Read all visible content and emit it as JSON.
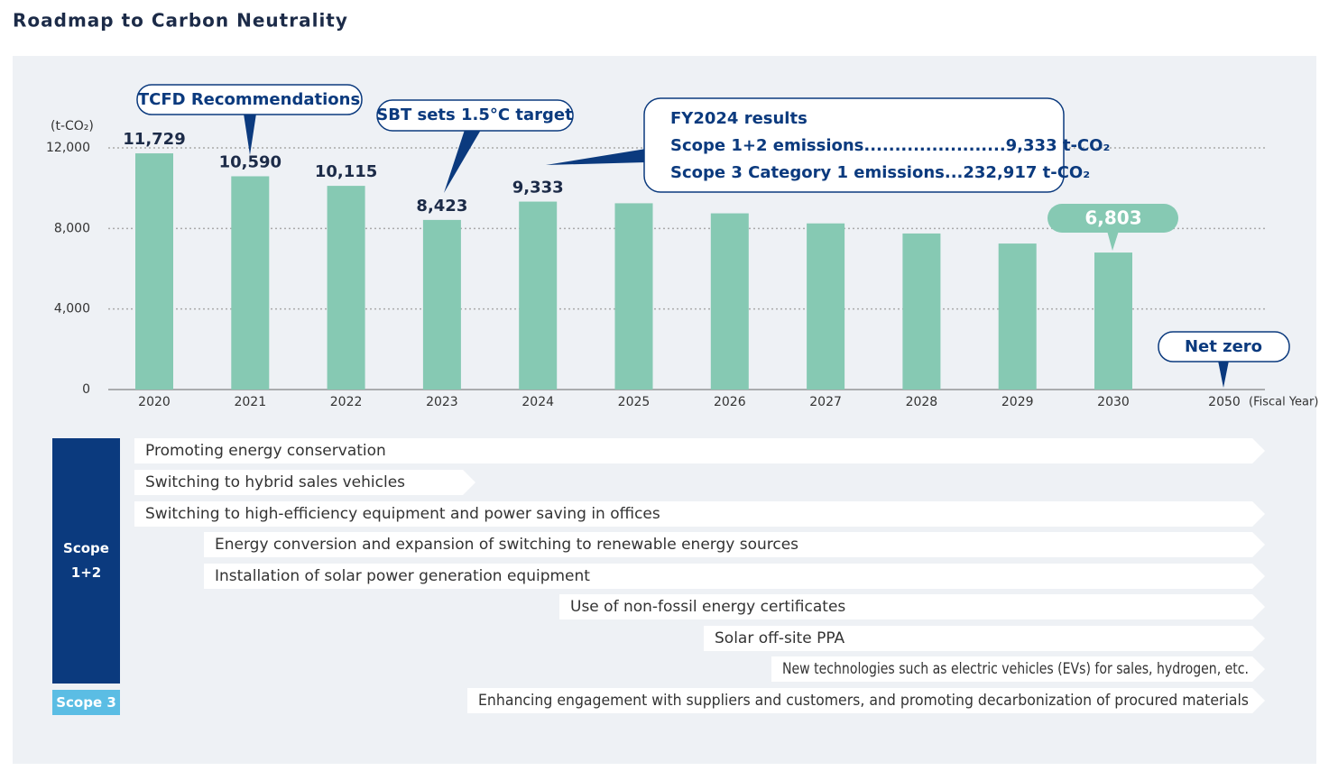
{
  "chart_data": {
    "type": "bar",
    "title": "Roadmap to Carbon Neutrality",
    "y_axis_label": "(t-CO₂)",
    "x_axis_label": "(Fiscal Year)",
    "categories": [
      "2020",
      "2021",
      "2022",
      "2023",
      "2024",
      "2025",
      "2026",
      "2027",
      "2028",
      "2029",
      "2030",
      "2050"
    ],
    "values": [
      11729,
      10590,
      10115,
      8423,
      9333,
      9250,
      8750,
      8250,
      7750,
      7250,
      6803,
      null
    ],
    "value_labels": [
      "11,729",
      "10,590",
      "10,115",
      "8,423",
      "9,333",
      null,
      null,
      null,
      null,
      null,
      "6,803",
      null
    ],
    "color": "#86c9b3",
    "ylim": [
      0,
      12000
    ],
    "yticks": [
      0,
      {
        "value": 4000,
        "label": "4,000"
      },
      {
        "value": 8000,
        "label": "8,000"
      },
      {
        "value": 12000,
        "label": "12,000"
      }
    ],
    "grid": true,
    "annotations": [
      "TCFD Recommendations",
      "SBT sets 1.5°C target",
      "Net zero"
    ],
    "fy2024_results": {
      "title": "FY2024 results",
      "lines": [
        "Scope 1+2 emissions.......................9,333 t-CO₂",
        "Scope 3 Category 1 emissions...232,917 t-CO₂"
      ]
    },
    "measures": {
      "scopes": [
        "Scope 1+2",
        "Scope 3"
      ],
      "items": [
        "Promoting energy conservation",
        "Switching to hybrid sales vehicles",
        "Switching to high-efficiency equipment and power saving in offices",
        "Energy conversion and expansion of switching to renewable energy sources",
        "Installation of solar power generation equipment",
        "Use of non-fossil energy certificates",
        "Solar off-site PPA",
        "New technologies such as electric vehicles (EVs) for sales, hydrogen, etc.",
        "Enhancing engagement with suppliers and customers, and promoting decarbonization of procured materials"
      ]
    }
  }
}
